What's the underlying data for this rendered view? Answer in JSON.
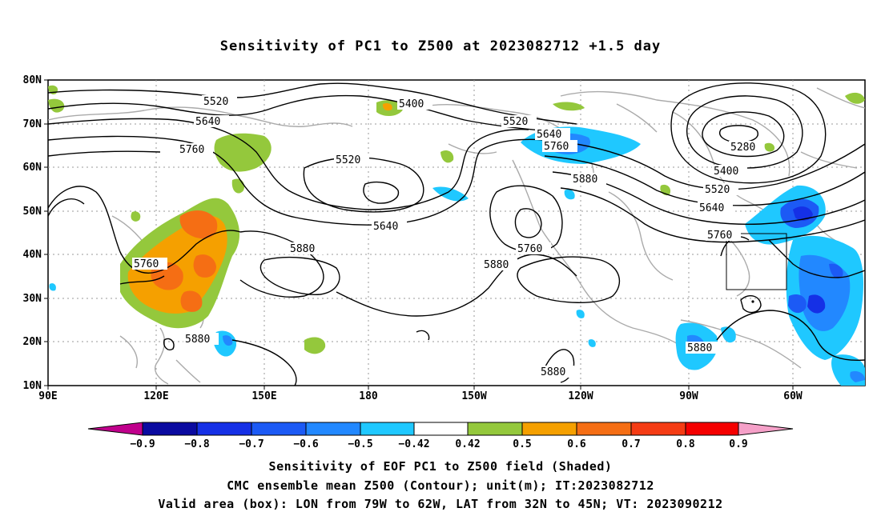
{
  "title": "Sensitivity of PC1 to Z500 at 2023082712 +1.5 day",
  "map": {
    "lat_ticks": [
      "80N",
      "70N",
      "60N",
      "50N",
      "40N",
      "30N",
      "20N",
      "10N"
    ],
    "lon_ticks": [
      "90E",
      "120E",
      "150E",
      "180",
      "150W",
      "120W",
      "90W",
      "60W"
    ],
    "contour_values": [
      "5520",
      "5400",
      "5640",
      "5520",
      "5640",
      "5760",
      "5760",
      "5520",
      "5880",
      "5280",
      "5400",
      "5520",
      "5640",
      "5760",
      "5880",
      "5640",
      "5760",
      "5760",
      "5880",
      "5880",
      "5880",
      "5880",
      "5880"
    ],
    "valid_box": {
      "lon_from": "79W",
      "lon_to": "62W",
      "lat_from": "32N",
      "lat_to": "45N"
    }
  },
  "colorbar": {
    "labels": [
      "−0.9",
      "−0.8",
      "−0.7",
      "−0.6",
      "−0.5",
      "−0.42",
      "0.42",
      "0.5",
      "0.6",
      "0.7",
      "0.8",
      "0.9"
    ],
    "colors": [
      "#c0008c",
      "#0a0aa0",
      "#1530e6",
      "#1c5af5",
      "#2288ff",
      "#1fc8ff",
      "#ffffff",
      "#94c83c",
      "#f5a000",
      "#f56e14",
      "#f53c14",
      "#f50000",
      "#f5a0c8"
    ]
  },
  "captions": {
    "line1": "Sensitivity of EOF PC1 to Z500 field (Shaded)",
    "line2": "CMC ensemble mean Z500 (Contour); unit(m); IT:2023082712",
    "line3": "Valid area (box): LON from 79W to 62W, LAT from 32N to 45N; VT: 2023090212"
  }
}
